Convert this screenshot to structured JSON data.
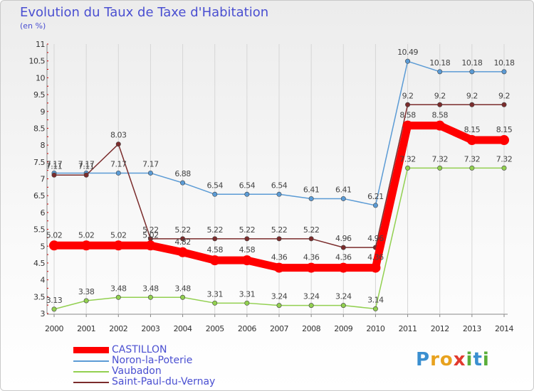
{
  "title": "Evolution du Taux de Taxe d'Habitation",
  "subtitle": "(en %)",
  "logo": {
    "letters": [
      {
        "ch": "P",
        "color": "#3a8fd0"
      },
      {
        "ch": "r",
        "color": "#e8a21e"
      },
      {
        "ch": "o",
        "color": "#e8a21e"
      },
      {
        "ch": "x",
        "color": "#e23a2e"
      },
      {
        "ch": "i",
        "color": "#5aae3a"
      },
      {
        "ch": "t",
        "color": "#3a8fd0"
      },
      {
        "ch": "i",
        "color": "#5aae3a"
      }
    ]
  },
  "chart_data": {
    "type": "line",
    "categories": [
      "2000",
      "2001",
      "2002",
      "2003",
      "2004",
      "2005",
      "2006",
      "2007",
      "2008",
      "2009",
      "2010",
      "2011",
      "2012",
      "2013",
      "2014"
    ],
    "ylim": [
      3,
      11
    ],
    "yticks": [
      "3",
      "3.5",
      "4",
      "4.5",
      "5",
      "5.5",
      "6",
      "6.5",
      "7",
      "7.5",
      "8",
      "8.5",
      "9",
      "9.5",
      "10",
      "10.5",
      "11"
    ],
    "grid": "vertical",
    "legend_position": "bottom-left",
    "series": [
      {
        "name": "CASTILLON",
        "color": "#ff0000",
        "thick": true,
        "values": [
          5.02,
          5.02,
          5.02,
          5.02,
          4.82,
          4.58,
          4.58,
          4.36,
          4.36,
          4.36,
          4.36,
          8.58,
          8.58,
          8.15,
          8.15
        ],
        "labels": [
          "5.02",
          "5.02",
          "5.02",
          "5.02",
          "4.82",
          "4.58",
          "4.58",
          "4.36",
          "4.36",
          "4.36",
          "4.36",
          "8.58",
          "8.58",
          "8.15",
          "8.15"
        ]
      },
      {
        "name": "Noron-la-Poterie",
        "color": "#5b9bd5",
        "thick": false,
        "values": [
          7.17,
          7.17,
          7.17,
          7.17,
          6.88,
          6.54,
          6.54,
          6.54,
          6.41,
          6.41,
          6.21,
          10.49,
          10.18,
          10.18,
          10.18
        ],
        "labels": [
          "7.17",
          "7.17",
          "7.17",
          "7.17",
          "6.88",
          "6.54",
          "6.54",
          "6.54",
          "6.41",
          "6.41",
          "6.21",
          "10.49",
          "10.18",
          "10.18",
          "10.18"
        ]
      },
      {
        "name": "Vaubadon",
        "color": "#92d050",
        "thick": false,
        "values": [
          3.13,
          3.38,
          3.48,
          3.48,
          3.48,
          3.31,
          3.31,
          3.24,
          3.24,
          3.24,
          3.14,
          7.32,
          7.32,
          7.32,
          7.32
        ],
        "labels": [
          "3.13",
          "3.38",
          "3.48",
          "3.48",
          "3.48",
          "3.31",
          "3.31",
          "3.24",
          "3.24",
          "3.24",
          "3.14",
          "7.32",
          "7.32",
          "7.32",
          "7.32"
        ]
      },
      {
        "name": "Saint-Paul-du-Vernay",
        "color": "#7b2c2c",
        "thick": false,
        "values": [
          7.11,
          7.11,
          8.03,
          5.22,
          5.22,
          5.22,
          5.22,
          5.22,
          5.22,
          4.96,
          4.96,
          9.2,
          9.2,
          9.2,
          9.2
        ],
        "labels": [
          "7.11",
          "7.11",
          "8.03",
          "5.22",
          "5.22",
          "5.22",
          "5.22",
          "5.22",
          "5.22",
          "4.96",
          "4.96",
          "9.2",
          "9.2",
          "9.2",
          "9.2"
        ]
      }
    ]
  }
}
